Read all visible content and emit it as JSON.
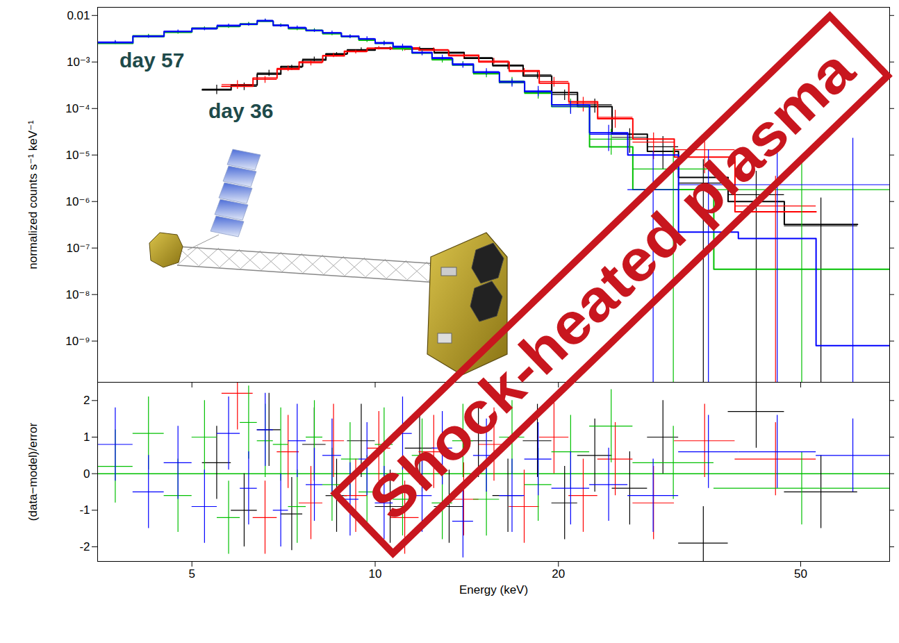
{
  "chart_data": {
    "type": "step",
    "xlabel": "Energy (keV)",
    "xlim": [
      3.5,
      70
    ],
    "xticks": [
      5,
      10,
      20,
      50
    ],
    "annotations": [
      {
        "text": "day 57",
        "color": "#1e4a4a"
      },
      {
        "text": "day 36",
        "color": "#1e4a4a"
      },
      {
        "text": "Shock-heated plasma",
        "color": "#c8161e"
      }
    ],
    "panels": [
      {
        "ylabel": "normalized counts s⁻¹ keV⁻¹",
        "log": true,
        "ylim": [
          1.3e-10,
          0.015
        ],
        "yticks": [
          {
            "value": 1e-09,
            "label": "10⁻⁹"
          },
          {
            "value": 1e-08,
            "label": "10⁻⁸"
          },
          {
            "value": 1e-07,
            "label": "10⁻⁷"
          },
          {
            "value": 1e-06,
            "label": "10⁻⁶"
          },
          {
            "value": 1e-05,
            "label": "10⁻⁵"
          },
          {
            "value": 0.0001,
            "label": "10⁻⁴"
          },
          {
            "value": 0.001,
            "label": "10⁻³"
          },
          0.01
        ],
        "tick_labels": "y"
      },
      {
        "ylabel": "(data−model)/error",
        "log": "x",
        "ylim": [
          -2.4,
          2.5
        ],
        "yticks": [
          -2,
          -1,
          0,
          1,
          2
        ],
        "reference": 0,
        "residual_error": 1
      }
    ],
    "series": [
      {
        "color": "#000000",
        "bins": [
          5.2,
          5.8,
          6.4,
          7.0,
          7.6,
          8.3,
          9.0,
          10.0,
          11.2,
          12.5,
          14.0,
          15.6,
          17.5,
          19.5,
          21.5,
          24.5,
          28.0,
          31.5,
          38,
          47,
          62
        ],
        "values": [
          0.00026,
          0.0003,
          0.00058,
          0.00076,
          0.00115,
          0.00145,
          0.00185,
          0.00195,
          0.00195,
          0.00155,
          0.00125,
          0.00082,
          0.00053,
          0.0002,
          0.00012,
          2.4e-05,
          1.5e-05,
          2.5e-06,
          1.4e-06,
          3e-07
        ],
        "lower": [
          0.0002,
          0.000245,
          0.00049,
          0.00066,
          0.00102,
          0.0013,
          0.00168,
          0.00178,
          0.00178,
          0.0014,
          0.0011,
          0.00069,
          0.00043,
          0.00015,
          8e-05,
          1.1e-05,
          5e-06,
          1e-11,
          1e-11,
          1e-11
        ],
        "upper": [
          0.00032,
          0.000355,
          0.00067,
          0.00086,
          0.00128,
          0.0016,
          0.00202,
          0.00212,
          0.00212,
          0.0017,
          0.0014,
          0.00095,
          0.00063,
          0.00025,
          0.00016,
          3.7e-05,
          2.5e-05,
          8e-06,
          4.5e-06,
          1.2e-06
        ],
        "model": [
          0.00025,
          0.00032,
          0.00055,
          0.0008,
          0.0011,
          0.0015,
          0.0018,
          0.002,
          0.0019,
          0.0016,
          0.0012,
          0.00085,
          0.0005,
          0.00022,
          0.00011,
          2.8e-05,
          1.2e-05,
          3.3e-06,
          1e-06,
          3.2e-07
        ],
        "residuals": [
          0.3,
          -1.0,
          1.2,
          -1.1,
          0.8,
          -0.6,
          0.9,
          -0.9,
          0.7,
          -0.9,
          0.9,
          -0.6,
          0.9,
          -0.8,
          0.5,
          -0.4,
          1.0,
          -1.9,
          1.7,
          -0.5
        ]
      },
      {
        "color": "#ff0000",
        "bins": [
          5.6,
          6.3,
          6.9,
          7.5,
          8.2,
          8.9,
          9.7,
          10.6,
          11.8,
          13.2,
          14.8,
          16.6,
          18.6,
          20.8,
          23.2,
          26.5,
          31,
          39,
          53
        ],
        "values": [
          0.00033,
          0.00042,
          0.00073,
          0.00095,
          0.0014,
          0.00165,
          0.002,
          0.0019,
          0.00185,
          0.00135,
          0.00105,
          0.00062,
          0.00038,
          0.00013,
          6.5e-05,
          1.9e-05,
          1.3e-05,
          8e-07
        ],
        "lower": [
          0.00026,
          0.00035,
          0.00063,
          0.00083,
          0.00125,
          0.0015,
          0.00183,
          0.00174,
          0.00168,
          0.0012,
          0.0009,
          0.00051,
          0.00029,
          8.5e-05,
          3.8e-05,
          8e-06,
          4e-06,
          1e-11
        ],
        "upper": [
          0.0004,
          0.00049,
          0.00083,
          0.00107,
          0.00155,
          0.0018,
          0.00217,
          0.00206,
          0.00202,
          0.0015,
          0.0012,
          0.00073,
          0.00047,
          0.000175,
          9.2e-05,
          3e-05,
          2.2e-05,
          3.5e-06
        ],
        "model": [
          0.0003,
          0.00045,
          0.0007,
          0.001,
          0.00135,
          0.0017,
          0.00195,
          0.002,
          0.0018,
          0.0014,
          0.001,
          0.00065,
          0.00035,
          0.00014,
          6e-05,
          2.2e-05,
          9e-06,
          6e-07
        ],
        "residuals": [
          2.2,
          -1.2,
          0.6,
          -0.8,
          0.9,
          -0.6,
          0.7,
          -1.2,
          0.6,
          -0.7,
          0.8,
          -0.9,
          1.0,
          -0.6,
          0.4,
          -0.8,
          0.9,
          0.4
        ]
      },
      {
        "color": "#00c000",
        "bins": [
          3.5,
          4,
          4.5,
          5,
          5.5,
          6,
          6.4,
          6.8,
          7.2,
          7.7,
          8.2,
          8.8,
          9.4,
          10,
          10.7,
          11.5,
          12.4,
          13.4,
          14.5,
          16,
          17.6,
          19.5,
          22.5,
          26.5,
          36,
          70
        ],
        "values": [
          0.0026,
          0.0037,
          0.0043,
          0.0054,
          0.0057,
          0.0067,
          0.0078,
          0.0063,
          0.0051,
          0.0049,
          0.004,
          0.0036,
          0.0029,
          0.0026,
          0.0019,
          0.0016,
          0.0011,
          0.0009,
          0.00055,
          0.00039,
          0.00021,
          0.00012,
          2.2e-05,
          5e-06,
          1.8e-06
        ],
        "lower": [
          0.0024,
          0.00345,
          0.004,
          0.00505,
          0.0053,
          0.00625,
          0.0073,
          0.0059,
          0.00475,
          0.00455,
          0.0037,
          0.0033,
          0.00265,
          0.00235,
          0.0017,
          0.00142,
          0.00096,
          0.00077,
          0.00046,
          0.00031,
          0.00016,
          8e-05,
          1e-05,
          1e-11,
          1e-11
        ],
        "upper": [
          0.0028,
          0.00395,
          0.0046,
          0.00575,
          0.0061,
          0.00715,
          0.0083,
          0.0067,
          0.00545,
          0.00525,
          0.0043,
          0.0039,
          0.00315,
          0.00285,
          0.0021,
          0.00178,
          0.00124,
          0.00103,
          0.00064,
          0.00047,
          0.00026,
          0.00016,
          3.6e-05,
          1.4e-05,
          8e-06
        ],
        "model": [
          0.0025,
          0.0035,
          0.0044,
          0.0052,
          0.0059,
          0.0064,
          0.0075,
          0.0061,
          0.0053,
          0.0047,
          0.0041,
          0.0035,
          0.003,
          0.0025,
          0.002,
          0.00155,
          0.00115,
          0.00086,
          0.00058,
          0.00036,
          0.00022,
          0.00011,
          1.5e-05,
          1.8e-06,
          3.5e-08
        ],
        "residuals": [
          0.2,
          1.1,
          -0.6,
          1.0,
          -1.2,
          1.4,
          0.9,
          0.8,
          -0.9,
          1.0,
          -0.3,
          0.4,
          -0.5,
          0.8,
          -0.7,
          0.5,
          -0.8,
          0.9,
          -0.7,
          1.0,
          -0.3,
          0.6,
          1.3,
          0.3,
          -0.4
        ]
      },
      {
        "color": "#0000ff",
        "bins": [
          3.5,
          4,
          4.5,
          5,
          5.5,
          6,
          6.4,
          6.8,
          7.2,
          7.7,
          8.2,
          8.8,
          9.4,
          10,
          10.7,
          11.5,
          12.4,
          13.4,
          14.5,
          16,
          17.6,
          19.5,
          22.5,
          26,
          31.5,
          39.5,
          53,
          70
        ],
        "values": [
          0.0027,
          0.0035,
          0.0046,
          0.0051,
          0.0062,
          0.0064,
          0.0079,
          0.006,
          0.0056,
          0.0047,
          0.0043,
          0.0035,
          0.0032,
          0.0025,
          0.0022,
          0.00155,
          0.00125,
          0.00086,
          0.00062,
          0.00036,
          0.00024,
          0.00011,
          2.8e-05,
          1.8e-06,
          2.3e-06,
          2.3e-06,
          2.3e-06
        ],
        "lower": [
          0.0025,
          0.00325,
          0.0043,
          0.00475,
          0.0058,
          0.00595,
          0.0074,
          0.0056,
          0.0052,
          0.00435,
          0.00395,
          0.0032,
          0.0029,
          0.00225,
          0.00197,
          0.00137,
          0.00109,
          0.00074,
          0.00052,
          0.00029,
          0.00018,
          7.5e-05,
          1.2e-05,
          1e-11,
          1e-11,
          1e-11,
          1e-11
        ],
        "upper": [
          0.0029,
          0.00375,
          0.0049,
          0.00545,
          0.0066,
          0.00685,
          0.0084,
          0.0064,
          0.006,
          0.00505,
          0.00465,
          0.0038,
          0.0035,
          0.00275,
          0.00243,
          0.00173,
          0.00141,
          0.00098,
          0.00072,
          0.00043,
          0.0003,
          0.000145,
          4.4e-05,
          1.2e-05,
          1.3e-05,
          1.1e-05,
          2.3e-05
        ],
        "model": [
          0.0026,
          0.0036,
          0.0045,
          0.0053,
          0.006,
          0.0065,
          0.0076,
          0.0062,
          0.0054,
          0.0048,
          0.0042,
          0.0036,
          0.0031,
          0.0026,
          0.0021,
          0.0016,
          0.0012,
          0.0009,
          0.0006,
          0.00038,
          0.00023,
          0.00012,
          3e-05,
          1e-05,
          2.2e-07,
          1.6e-07,
          8e-10
        ],
        "residuals": [
          0.8,
          -0.5,
          0.3,
          -0.9,
          1.1,
          -0.4,
          1.2,
          -1.0,
          0.9,
          -0.3,
          0.5,
          -0.7,
          0.4,
          -0.8,
          1.1,
          -0.6,
          0.7,
          -1.3,
          0.5,
          -0.6,
          0.4,
          -0.4,
          -0.3,
          -0.6,
          0.6,
          0.6,
          0.5
        ]
      }
    ]
  }
}
